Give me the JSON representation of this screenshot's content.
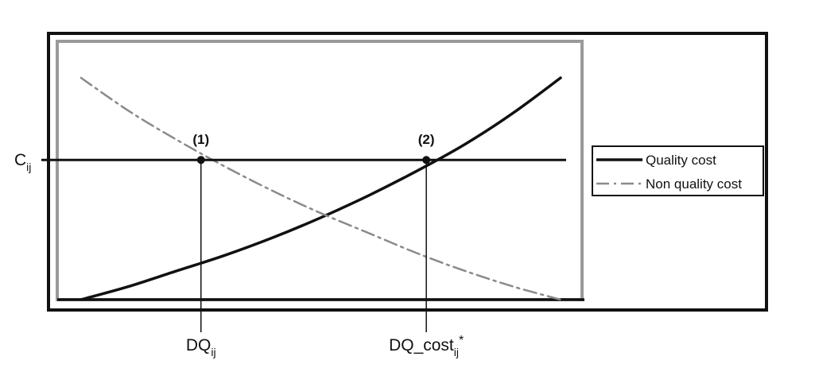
{
  "chart_data": {
    "type": "line",
    "title": "",
    "xlabel": "",
    "ylabel": "",
    "xlim": [
      0,
      10
    ],
    "ylim": [
      0,
      10
    ],
    "grid": false,
    "legend_position": "right",
    "series": [
      {
        "name": "Quality cost",
        "style": "solid",
        "color": "#111111",
        "x": [
          0,
          1.0,
          2.0,
          3.0,
          4.0,
          5.0,
          6.0,
          7.0,
          8.0,
          9.0,
          10.0
        ],
        "y": [
          0,
          0.6,
          1.3,
          2.0,
          2.8,
          3.7,
          4.7,
          5.8,
          7.0,
          8.4,
          10.0
        ]
      },
      {
        "name": "Non quality cost",
        "style": "dash-dot",
        "color": "#8a8a8a",
        "x": [
          0,
          1.0,
          2.0,
          3.0,
          4.0,
          5.0,
          6.0,
          7.0,
          8.0,
          9.0,
          10.0
        ],
        "y": [
          10.0,
          8.5,
          7.2,
          6.0,
          4.9,
          3.9,
          3.0,
          2.1,
          1.3,
          0.6,
          0
        ]
      }
    ],
    "threshold": {
      "label": "C",
      "sub": "ij",
      "y": 6.3
    },
    "points": [
      {
        "id": "(1)",
        "x": 2.5,
        "y": 6.3,
        "xlabel": "DQ",
        "xlabel_sub": "ij",
        "xlabel_sup": ""
      },
      {
        "id": "(2)",
        "x": 7.2,
        "y": 6.3,
        "xlabel": "DQ_cost",
        "xlabel_sub": "ij",
        "xlabel_sup": "*"
      }
    ]
  }
}
